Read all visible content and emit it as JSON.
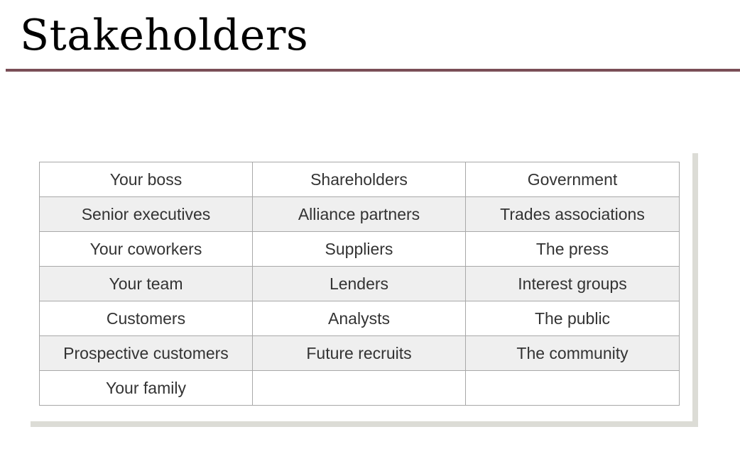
{
  "slide": {
    "title": "Stakeholders"
  },
  "table": {
    "rows": [
      [
        "Your boss",
        "Shareholders",
        "Government"
      ],
      [
        "Senior executives",
        "Alliance partners",
        "Trades associations"
      ],
      [
        "Your coworkers",
        "Suppliers",
        "The press"
      ],
      [
        "Your team",
        "Lenders",
        "Interest groups"
      ],
      [
        "Customers",
        "Analysts",
        "The public"
      ],
      [
        "Prospective customers",
        "Future recruits",
        "The community"
      ],
      [
        "Your family",
        "",
        ""
      ]
    ]
  },
  "colors": {
    "title_rule": "#7a4e57",
    "row_alt": "#efefef",
    "border": "#a8a8a8",
    "shadow": "#dcdcd6",
    "text": "#333333"
  }
}
